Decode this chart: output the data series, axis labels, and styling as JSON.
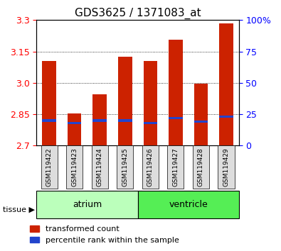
{
  "title": "GDS3625 / 1371083_at",
  "samples": [
    "GSM119422",
    "GSM119423",
    "GSM119424",
    "GSM119425",
    "GSM119426",
    "GSM119427",
    "GSM119428",
    "GSM119429"
  ],
  "transformed_counts": [
    3.105,
    2.855,
    2.945,
    3.125,
    3.105,
    3.205,
    2.995,
    3.285
  ],
  "percentile_ranks": [
    20,
    18,
    20,
    20,
    18,
    22,
    19,
    23
  ],
  "ymin": 2.7,
  "ymax": 3.3,
  "yticks": [
    2.7,
    2.85,
    3.0,
    3.15,
    3.3
  ],
  "right_yticks": [
    0,
    25,
    50,
    75,
    100
  ],
  "bar_color": "#cc2200",
  "percentile_color": "#2244cc",
  "tissue_groups": [
    {
      "label": "atrium",
      "start": 0,
      "end": 4,
      "color": "#bbffbb"
    },
    {
      "label": "ventricle",
      "start": 4,
      "end": 8,
      "color": "#55ee55"
    }
  ],
  "background_color": "#ffffff",
  "plot_bg": "#ffffff",
  "label_bg": "#dddddd",
  "bar_width": 0.55,
  "title_fontsize": 11,
  "tick_fontsize": 9,
  "legend_fontsize": 8
}
